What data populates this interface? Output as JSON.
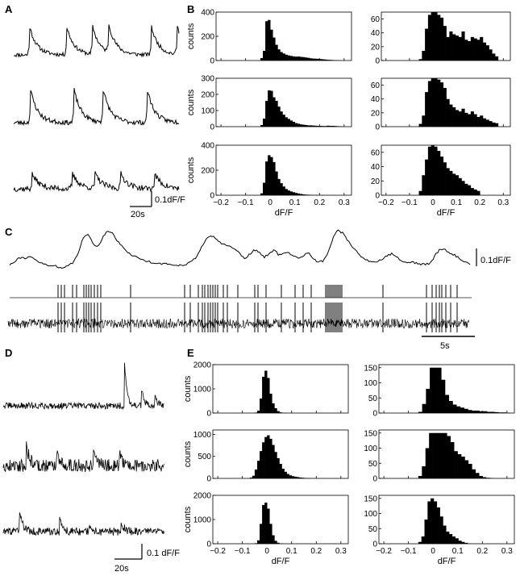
{
  "panel_labels": {
    "A": "A",
    "B": "B",
    "C": "C",
    "D": "D",
    "E": "E"
  },
  "scalebars": {
    "A_y": "0.1dF/F",
    "A_x": "20s",
    "C_y": "0.1dF/F",
    "C_x": "5s",
    "D_y": "0.1 dF/F",
    "D_x": "20s"
  },
  "chart_data": [
    {
      "id": "B",
      "type": "bar",
      "xlabel": "dF/F",
      "ylabel": "counts",
      "xlim": [
        -0.22,
        0.33
      ],
      "xticks": [
        "−0.2",
        "−0.1",
        "0",
        "0.1",
        "0.2",
        "0.3"
      ],
      "bin_edges_start": -0.04,
      "bin_width": 0.01,
      "histograms": [
        {
          "ylim": [
            0,
            400
          ],
          "yticks": [
            "0",
            "200",
            "400"
          ],
          "values": [
            20,
            80,
            325,
            335,
            255,
            190,
            130,
            92,
            70,
            58,
            48,
            42,
            38,
            34,
            32,
            33,
            30,
            28,
            25,
            22,
            18,
            16,
            15,
            14,
            12,
            10,
            8,
            6,
            5,
            4,
            3,
            2,
            0,
            0,
            0,
            0
          ]
        },
        {
          "ylim": [
            0,
            300
          ],
          "yticks": [
            "0",
            "100",
            "200",
            "300"
          ],
          "values": [
            10,
            50,
            160,
            225,
            222,
            182,
            160,
            124,
            94,
            74,
            58,
            48,
            38,
            30,
            22,
            18,
            14,
            12,
            10,
            8,
            8,
            7,
            6,
            5,
            5,
            4,
            4,
            6,
            5,
            5,
            4,
            3,
            2,
            1,
            0,
            0
          ]
        },
        {
          "ylim": [
            0,
            400
          ],
          "yticks": [
            "0",
            "200",
            "400"
          ],
          "values": [
            15,
            100,
            270,
            320,
            305,
            265,
            190,
            130,
            96,
            70,
            50,
            38,
            30,
            24,
            18,
            14,
            10,
            7,
            5,
            4,
            3,
            2,
            2,
            1,
            1,
            1,
            0,
            0,
            0,
            0,
            0,
            0,
            0,
            0,
            0,
            0
          ]
        },
        {
          "ylim": [
            0,
            70
          ],
          "yticks": [
            "0",
            "20",
            "40",
            "60"
          ],
          "values": [
            2,
            14,
            46,
            66,
            70,
            70,
            66,
            62,
            50,
            34,
            42,
            38,
            36,
            34,
            42,
            30,
            28,
            34,
            32,
            30,
            34,
            26,
            22,
            16,
            10,
            6,
            0,
            0,
            0,
            0
          ]
        },
        {
          "ylim": [
            0,
            70
          ],
          "yticks": [
            "0",
            "20",
            "40",
            "60"
          ],
          "values": [
            4,
            16,
            50,
            66,
            70,
            70,
            68,
            64,
            56,
            40,
            32,
            28,
            24,
            22,
            26,
            20,
            18,
            22,
            18,
            14,
            16,
            12,
            10,
            8,
            6,
            5,
            0,
            0,
            0,
            0
          ]
        },
        {
          "ylim": [
            0,
            70
          ],
          "yticks": [
            "0",
            "20",
            "40",
            "60"
          ],
          "values": [
            6,
            28,
            50,
            68,
            70,
            68,
            62,
            54,
            46,
            38,
            34,
            30,
            28,
            24,
            20,
            16,
            14,
            10,
            8,
            6,
            0,
            0,
            0,
            0,
            0,
            0,
            0,
            0,
            0,
            0
          ]
        }
      ]
    },
    {
      "id": "E",
      "type": "bar",
      "xlabel": "dF/F",
      "ylabel": "counts",
      "xlim": [
        -0.22,
        0.33
      ],
      "xticks": [
        "−0.2",
        "−0.1",
        "0",
        "0.1",
        "0.2",
        "0.3"
      ],
      "histograms": [
        {
          "ylim": [
            0,
            2000
          ],
          "yticks": [
            "0",
            "1000",
            "2000"
          ],
          "values": [
            20,
            100,
            600,
            1500,
            1750,
            1450,
            800,
            400,
            200,
            80,
            30,
            10,
            5,
            0,
            0,
            0,
            0,
            0
          ]
        },
        {
          "ylim": [
            0,
            1100
          ],
          "yticks": [
            "0",
            "500",
            "1000"
          ],
          "values": [
            20,
            60,
            200,
            400,
            620,
            820,
            940,
            980,
            900,
            760,
            600,
            460,
            330,
            220,
            150,
            100,
            70,
            50,
            40,
            30,
            20,
            15,
            10,
            8,
            5,
            3,
            0,
            0,
            0
          ]
        },
        {
          "ylim": [
            0,
            2000
          ],
          "yticks": [
            "0",
            "1000",
            "2000"
          ],
          "values": [
            20,
            140,
            820,
            1600,
            1700,
            1450,
            820,
            350,
            120,
            40,
            15,
            5,
            0,
            0,
            0,
            0,
            0,
            0
          ]
        },
        {
          "ylim": [
            0,
            160
          ],
          "yticks": [
            "0",
            "50",
            "100",
            "150"
          ],
          "values": [
            4,
            30,
            80,
            150,
            150,
            150,
            110,
            60,
            40,
            28,
            22,
            18,
            14,
            10,
            8,
            8,
            6,
            6,
            4,
            4,
            3,
            2,
            2,
            1
          ]
        },
        {
          "ylim": [
            0,
            160
          ],
          "yticks": [
            "0",
            "50",
            "100",
            "150"
          ],
          "values": [
            8,
            40,
            100,
            150,
            150,
            150,
            150,
            150,
            140,
            120,
            90,
            80,
            72,
            60,
            48,
            30,
            18,
            8,
            4,
            2,
            1,
            0
          ]
        },
        {
          "ylim": [
            0,
            160
          ],
          "yticks": [
            "0",
            "50",
            "100",
            "150"
          ],
          "values": [
            6,
            24,
            80,
            140,
            150,
            140,
            120,
            90,
            60,
            40,
            32,
            24,
            18,
            10,
            6,
            3,
            1,
            0,
            0,
            0
          ]
        }
      ]
    },
    {
      "id": "C",
      "type": "line",
      "ylabel": "",
      "xlabel": "",
      "series": [
        {
          "values": [
            0.25,
            0.32,
            0.4,
            0.38,
            0.42,
            0.36,
            0.3,
            0.26,
            0.22,
            0.24,
            0.2,
            0.18,
            0.22,
            0.3,
            0.5,
            0.8,
            0.88,
            0.7,
            0.6,
            0.82,
            0.96,
            0.9,
            0.74,
            0.62,
            0.52,
            0.44,
            0.4,
            0.36,
            0.32,
            0.3,
            0.28,
            0.27,
            0.26,
            0.25,
            0.24,
            0.24,
            0.26,
            0.3,
            0.4,
            0.58,
            0.75,
            0.85,
            0.8,
            0.7,
            0.66,
            0.62,
            0.58,
            0.48,
            0.38,
            0.46,
            0.56,
            0.5,
            0.4,
            0.48,
            0.56,
            0.44,
            0.48,
            0.5,
            0.42,
            0.38,
            0.44,
            0.5,
            0.38,
            0.3,
            0.32,
            0.5,
            0.8,
            0.96,
            0.9,
            0.76,
            0.62,
            0.5,
            0.4,
            0.34,
            0.3,
            0.32,
            0.36,
            0.42,
            0.48,
            0.4,
            0.34,
            0.3,
            0.3,
            0.28,
            0.26,
            0.26,
            0.28,
            0.46,
            0.58,
            0.56,
            0.48,
            0.44,
            0.36,
            0.3,
            0.25
          ]
        }
      ]
    }
  ]
}
